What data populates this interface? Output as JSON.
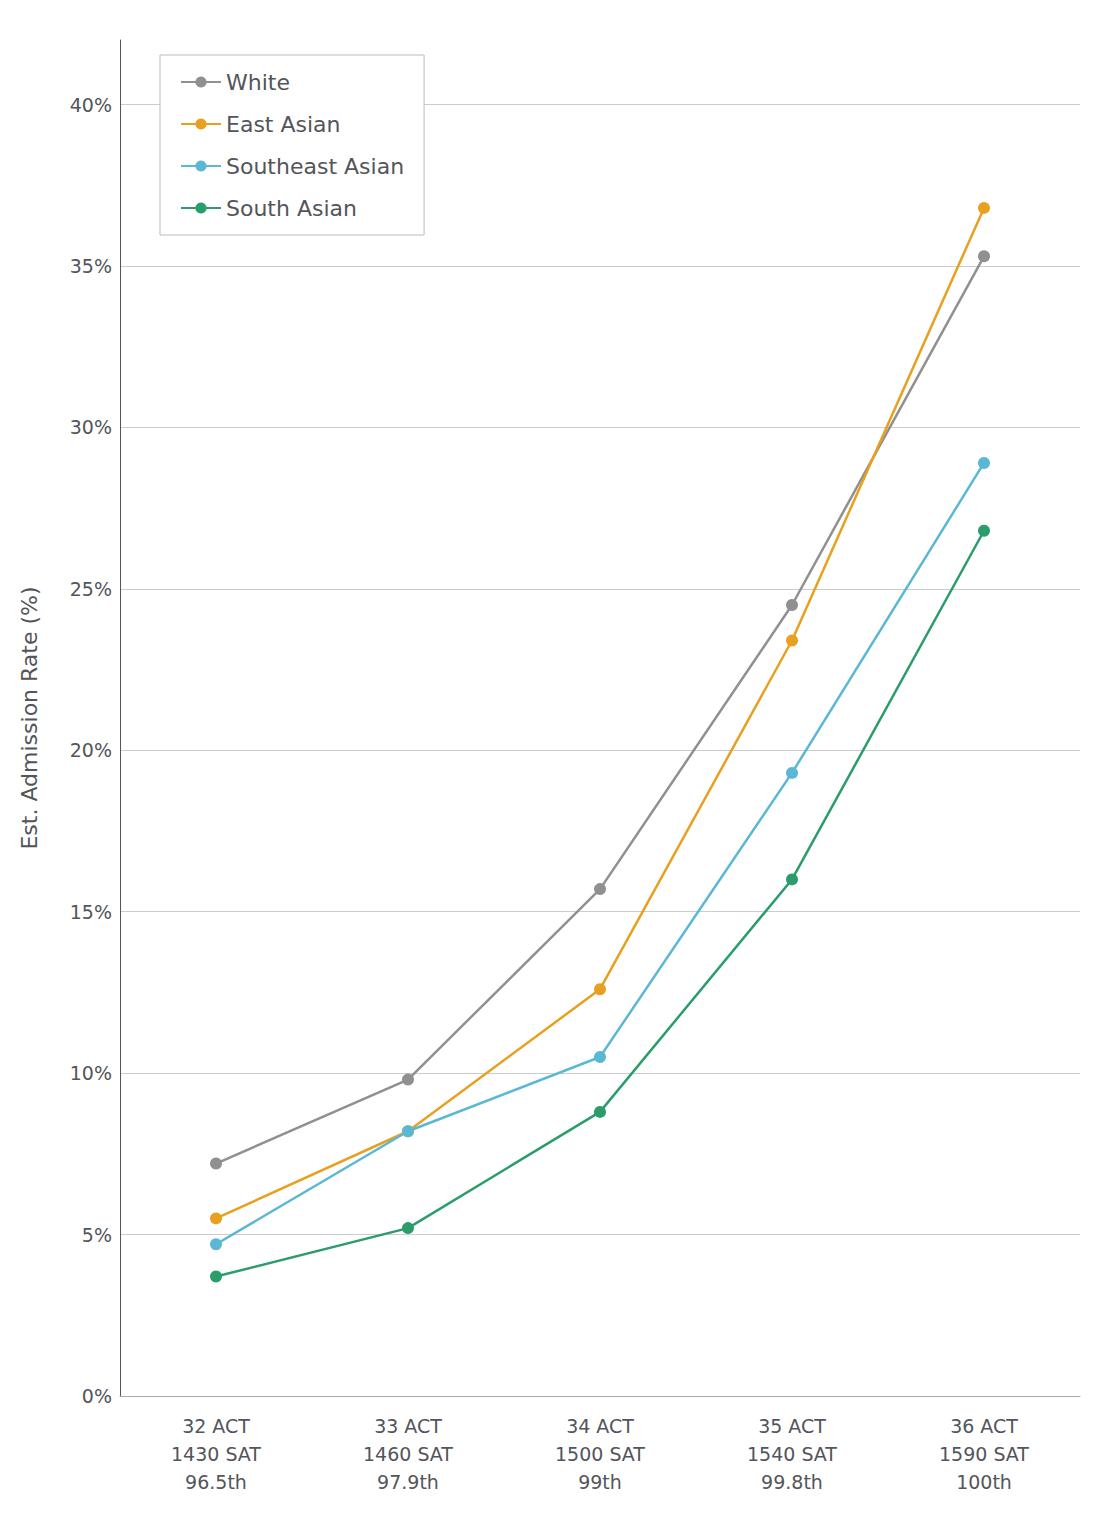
{
  "chart_data": {
    "type": "line",
    "ylabel": "Est. Admission Rate (%)",
    "categories": [
      "32 ACT\n1430 SAT\n96.5th",
      "33 ACT\n1460 SAT\n97.9th",
      "34 ACT\n1500 SAT\n99th",
      "35 ACT\n1540 SAT\n99.8th",
      "36 ACT\n1590 SAT\n100th"
    ],
    "series": [
      {
        "name": "White",
        "color": "#909090",
        "values": [
          0.072,
          0.098,
          0.157,
          0.245,
          0.353
        ]
      },
      {
        "name": "East Asian",
        "color": "#E8A020",
        "values": [
          0.055,
          0.082,
          0.126,
          0.234,
          0.368
        ]
      },
      {
        "name": "Southeast Asian",
        "color": "#5BB8D4",
        "values": [
          0.047,
          0.082,
          0.105,
          0.193,
          0.289
        ]
      },
      {
        "name": "South Asian",
        "color": "#2A9D6A",
        "values": [
          0.037,
          0.052,
          0.088,
          0.16,
          0.268
        ]
      }
    ],
    "ylim": [
      0,
      0.42
    ],
    "yticks": [
      {
        "value": 0.0,
        "label": "0%"
      },
      {
        "value": 0.05,
        "label": "5%"
      },
      {
        "value": 0.1,
        "label": "10%"
      },
      {
        "value": 0.15,
        "label": "15%"
      },
      {
        "value": 0.2,
        "label": "20%"
      },
      {
        "value": 0.25,
        "label": "25%"
      },
      {
        "value": 0.3,
        "label": "30%"
      },
      {
        "value": 0.35,
        "label": "35%"
      },
      {
        "value": 0.4,
        "label": "40%"
      }
    ],
    "grid": true,
    "legend": "upper left",
    "marker": "circle"
  }
}
